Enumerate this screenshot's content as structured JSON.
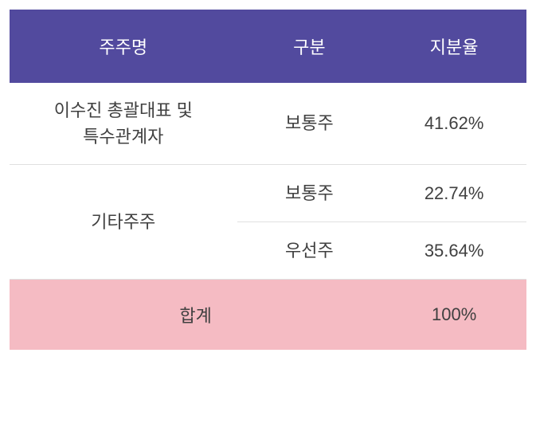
{
  "table": {
    "type": "table",
    "columns": [
      {
        "key": "shareholder",
        "label": "주주명",
        "width_pct": 44
      },
      {
        "key": "type",
        "label": "구분",
        "width_pct": 28
      },
      {
        "key": "ratio",
        "label": "지분율",
        "width_pct": 28
      }
    ],
    "header_bg": "#524a9e",
    "header_color": "#ffffff",
    "cell_color": "#404040",
    "border_color": "#e0e0e0",
    "total_bg": "#f5bbc3",
    "font_size": 22,
    "rows": [
      {
        "shareholder_line1": "이수진 총괄대표 및",
        "shareholder_line2": "특수관계자",
        "type": "보통주",
        "ratio": "41.62%"
      },
      {
        "shareholder": "기타주주",
        "shareholder_rowspan": 2,
        "type": "보통주",
        "ratio": "22.74%"
      },
      {
        "type": "우선주",
        "ratio": "35.64%"
      }
    ],
    "total": {
      "label": "합계",
      "ratio": "100%"
    }
  }
}
